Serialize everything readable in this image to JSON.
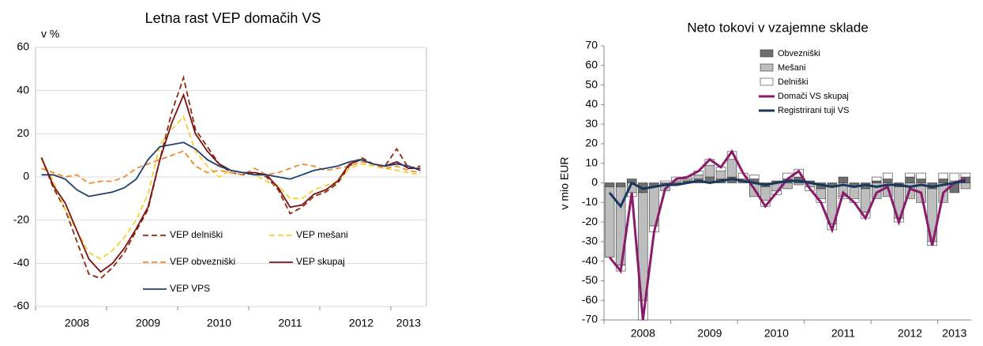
{
  "chart_data": [
    {
      "type": "line",
      "title": "Letna rast VEP domačih VS",
      "y_label": "v %",
      "categories": [
        null,
        null,
        null,
        "2008",
        null,
        null,
        null,
        null,
        null,
        "2009",
        null,
        null,
        null,
        null,
        null,
        "2010",
        null,
        null,
        null,
        null,
        null,
        "2011",
        null,
        null,
        null,
        null,
        null,
        "2012",
        null,
        null,
        null,
        "2013",
        null
      ],
      "ylim": [
        -60,
        60
      ],
      "yticks": [
        -60,
        -40,
        -20,
        0,
        20,
        40,
        60
      ],
      "grid": true,
      "legend": "bottom",
      "series": [
        {
          "name": "VEP delniški",
          "color": "#8b2a0e",
          "dashed": true,
          "values": [
            9,
            -5,
            -15,
            -30,
            -45,
            -47,
            -42,
            -35,
            -25,
            -15,
            8,
            30,
            46,
            22,
            14,
            6,
            2,
            1,
            2,
            0,
            -6,
            -17,
            -14,
            -9,
            -7,
            -3,
            5,
            9,
            6,
            5,
            13,
            4,
            5
          ]
        },
        {
          "name": "VEP mešani",
          "color": "#f5d130",
          "dashed": true,
          "values": [
            8,
            -2,
            -15,
            -25,
            -35,
            -38,
            -34,
            -28,
            -20,
            -8,
            15,
            22,
            28,
            12,
            5,
            0,
            3,
            2,
            1,
            -2,
            -4,
            -10,
            -10,
            -6,
            -4,
            -2,
            4,
            6,
            5,
            4,
            3,
            2,
            1
          ]
        },
        {
          "name": "VEP obvezniški",
          "color": "#f08a30",
          "dashed": true,
          "values": [
            4,
            2,
            0,
            1,
            -3,
            -2,
            -2,
            0,
            4,
            6,
            8,
            10,
            12,
            5,
            2,
            3,
            2,
            1,
            4,
            1,
            2,
            4,
            6,
            5,
            3,
            4,
            5,
            7,
            6,
            4,
            5,
            3,
            2
          ]
        },
        {
          "name": "VEP skupaj",
          "color": "#7b1010",
          "dashed": false,
          "values": [
            9,
            -4,
            -12,
            -25,
            -38,
            -44,
            -40,
            -33,
            -24,
            -14,
            8,
            25,
            38,
            20,
            12,
            6,
            3,
            2,
            2,
            1,
            -5,
            -14,
            -13,
            -8,
            -6,
            -2,
            6,
            8,
            6,
            5,
            7,
            4,
            4
          ]
        },
        {
          "name": "VEP VPS",
          "color": "#1f3f6e",
          "dashed": false,
          "values": [
            1,
            1,
            -1,
            -6,
            -9,
            -8,
            -7,
            -5,
            -1,
            8,
            14,
            15,
            16,
            13,
            8,
            5,
            3,
            2,
            1,
            1,
            0,
            -1,
            1,
            3,
            4,
            5,
            7,
            8,
            6,
            5,
            6,
            5,
            3
          ]
        }
      ]
    },
    {
      "type": "bar",
      "title": "Neto tokovi v vzajemne sklade",
      "y_label": "v mio EUR",
      "categories": [
        null,
        null,
        null,
        "2008",
        null,
        null,
        null,
        null,
        null,
        "2009",
        null,
        null,
        null,
        null,
        null,
        "2010",
        null,
        null,
        null,
        null,
        null,
        "2011",
        null,
        null,
        null,
        null,
        null,
        "2012",
        null,
        null,
        null,
        "2013",
        null
      ],
      "ylim": [
        -70,
        70
      ],
      "yticks": [
        -70,
        -60,
        -50,
        -40,
        -30,
        -20,
        -10,
        0,
        10,
        20,
        30,
        40,
        50,
        60,
        70
      ],
      "grid": false,
      "legend": "top",
      "stacked": true,
      "series": [
        {
          "name": "Obvezniški",
          "type": "bar",
          "color": "#6e6e6e",
          "values": [
            -2,
            -2,
            2,
            -5,
            -2,
            -1,
            -1,
            1,
            2,
            3,
            2,
            3,
            1,
            2,
            -2,
            1,
            2,
            3,
            1,
            -3,
            -2,
            3,
            -2,
            -3,
            1,
            2,
            -2,
            3,
            2,
            -3,
            2,
            -5,
            3
          ]
        },
        {
          "name": "Mešani",
          "type": "bar",
          "color": "#bdbdbd",
          "values": [
            -36,
            -40,
            -5,
            -55,
            -20,
            -3,
            1,
            1,
            2,
            6,
            4,
            9,
            1,
            -7,
            -7,
            -4,
            -3,
            -1,
            -2,
            -5,
            -19,
            -7,
            -6,
            -12,
            -8,
            -7,
            -16,
            -8,
            -10,
            -27,
            -10,
            1,
            -3
          ]
        },
        {
          "name": "Delniški",
          "type": "bar",
          "color": "#ffffff",
          "values": [
            0,
            -3,
            -2,
            -10,
            -3,
            1,
            2,
            1,
            2,
            3,
            2,
            4,
            3,
            2,
            -3,
            -2,
            3,
            4,
            -2,
            -2,
            -3,
            -1,
            -2,
            -3,
            2,
            3,
            -2,
            2,
            3,
            -2,
            3,
            4,
            2
          ]
        },
        {
          "name": "Domači VS skupaj",
          "type": "line",
          "color": "#8b1a6b",
          "values": [
            -38,
            -45,
            -5,
            -70,
            -25,
            -3,
            2,
            3,
            6,
            12,
            8,
            16,
            5,
            -3,
            -12,
            -5,
            2,
            6,
            -3,
            -10,
            -24,
            -5,
            -10,
            -18,
            -5,
            -2,
            -20,
            -3,
            -5,
            -32,
            -5,
            0,
            2
          ]
        },
        {
          "name": "Registrirani tuji VS",
          "type": "line",
          "color": "#17375e",
          "values": [
            -5,
            -12,
            0,
            -3,
            -2,
            -1,
            -1,
            0,
            1,
            0,
            1,
            2,
            1,
            0,
            -1,
            0,
            1,
            1,
            0,
            -1,
            -2,
            -1,
            -2,
            -1,
            -2,
            -1,
            -1,
            -2,
            -1,
            -2,
            -1,
            0,
            1
          ]
        }
      ]
    }
  ]
}
